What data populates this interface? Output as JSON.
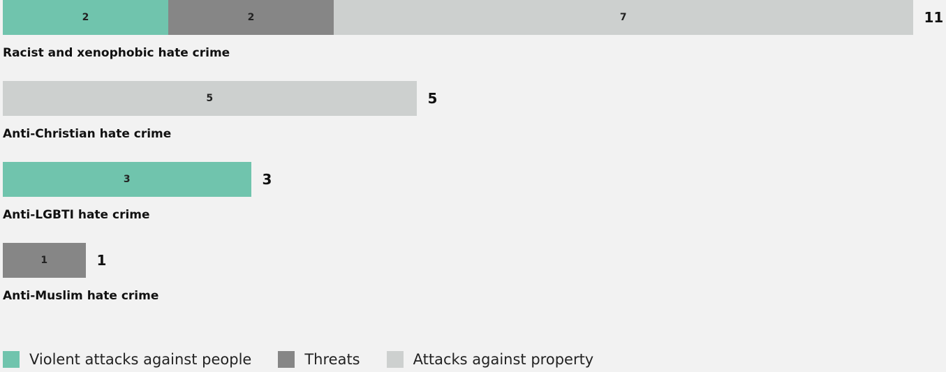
{
  "chart_data": {
    "type": "bar",
    "orientation": "horizontal",
    "stacked": true,
    "categories": [
      "Racist and xenophobic hate crime",
      "Anti-Christian hate crime",
      "Anti-LGBTI hate crime",
      "Anti-Muslim hate crime"
    ],
    "series": [
      {
        "name": "Violent attacks against people",
        "color": "#70c4ad",
        "values": [
          2,
          0,
          3,
          0
        ]
      },
      {
        "name": "Threats",
        "color": "#868686",
        "values": [
          2,
          0,
          0,
          1
        ]
      },
      {
        "name": "Attacks against property",
        "color": "#cdd0cf",
        "values": [
          7,
          5,
          0,
          0
        ]
      }
    ],
    "totals": [
      11,
      5,
      3,
      1
    ],
    "legend_position": "bottom-left",
    "grid": false
  }
}
